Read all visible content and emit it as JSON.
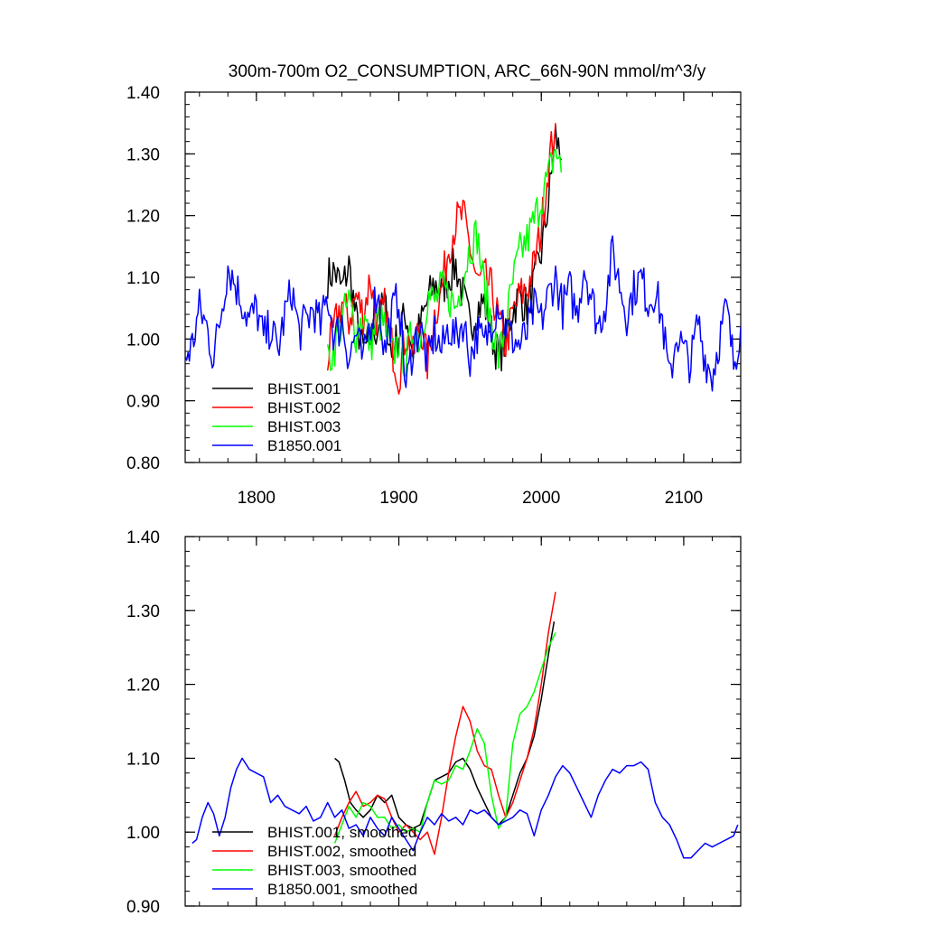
{
  "chart_data": [
    {
      "type": "line",
      "title": "300m-700m O2_CONSUMPTION, ARC_66N-90N  mmol/m^3/y",
      "xlim": [
        1750,
        2140
      ],
      "ylim": [
        0.8,
        1.4
      ],
      "xticks": [
        1800,
        1900,
        2000,
        2100
      ],
      "xtick_labels": [
        "1800",
        "1900",
        "2000",
        "2100"
      ],
      "yticks": [
        0.8,
        0.9,
        1.0,
        1.1,
        1.2,
        1.3,
        1.4
      ],
      "ytick_labels": [
        "0.80",
        "0.90",
        "1.00",
        "1.10",
        "1.20",
        "1.30",
        "1.40"
      ],
      "grid": false,
      "legend_position": "bottom-left",
      "series": [
        {
          "name": "BHIST.001",
          "color": "#000000",
          "x": [
            1850,
            1855,
            1860,
            1865,
            1870,
            1875,
            1880,
            1885,
            1890,
            1895,
            1900,
            1905,
            1910,
            1915,
            1920,
            1925,
            1930,
            1935,
            1940,
            1945,
            1950,
            1955,
            1960,
            1965,
            1970,
            1975,
            1980,
            1985,
            1990,
            1995,
            2000,
            2005,
            2010,
            2014
          ],
          "y": [
            1.1,
            1.11,
            1.08,
            1.12,
            1.03,
            0.98,
            1.0,
            1.02,
            1.06,
            0.97,
            1.01,
            1.04,
            0.98,
            1.02,
            1.06,
            1.09,
            1.08,
            1.1,
            1.12,
            1.07,
            1.02,
            1.05,
            1.06,
            1.01,
            0.97,
            1.0,
            1.05,
            1.07,
            1.05,
            1.09,
            1.14,
            1.22,
            1.33,
            1.29
          ]
        },
        {
          "name": "BHIST.002",
          "color": "#ff0000",
          "x": [
            1850,
            1855,
            1860,
            1865,
            1870,
            1875,
            1880,
            1885,
            1890,
            1895,
            1900,
            1905,
            1910,
            1915,
            1920,
            1925,
            1930,
            1935,
            1940,
            1945,
            1950,
            1955,
            1960,
            1965,
            1970,
            1975,
            1980,
            1985,
            1990,
            1995,
            2000,
            2005,
            2010
          ],
          "y": [
            0.97,
            1.02,
            1.06,
            1.03,
            1.07,
            1.04,
            1.1,
            1.02,
            1.05,
            0.99,
            0.94,
            1.01,
            0.97,
            1.03,
            0.96,
            1.04,
            1.08,
            1.15,
            1.19,
            1.2,
            1.15,
            1.09,
            1.1,
            1.08,
            1.03,
            0.99,
            1.04,
            1.07,
            1.08,
            1.12,
            1.18,
            1.28,
            1.35
          ]
        },
        {
          "name": "BHIST.003",
          "color": "#00ff00",
          "x": [
            1850,
            1855,
            1860,
            1865,
            1870,
            1875,
            1880,
            1885,
            1890,
            1895,
            1900,
            1905,
            1910,
            1915,
            1920,
            1925,
            1930,
            1935,
            1940,
            1945,
            1950,
            1955,
            1960,
            1965,
            1970,
            1975,
            1980,
            1985,
            1990,
            1995,
            2000,
            2005,
            2010,
            2014
          ],
          "y": [
            0.96,
            0.99,
            1.03,
            1.06,
            1.01,
            1.04,
            0.99,
            1.03,
            1.02,
            0.97,
            1.0,
            0.96,
            1.02,
            1.0,
            1.07,
            1.06,
            1.08,
            1.07,
            1.05,
            1.1,
            1.15,
            1.17,
            1.08,
            1.03,
            0.97,
            1.02,
            1.09,
            1.14,
            1.16,
            1.19,
            1.23,
            1.26,
            1.31,
            1.27
          ]
        },
        {
          "name": "B1850.001",
          "color": "#0000ff",
          "x": [
            1750,
            1755,
            1760,
            1765,
            1770,
            1775,
            1780,
            1785,
            1790,
            1795,
            1800,
            1805,
            1810,
            1815,
            1820,
            1825,
            1830,
            1835,
            1840,
            1845,
            1850,
            1855,
            1860,
            1865,
            1870,
            1875,
            1880,
            1885,
            1890,
            1895,
            1900,
            1905,
            1910,
            1915,
            1920,
            1925,
            1930,
            1935,
            1940,
            1945,
            1950,
            1955,
            1960,
            1965,
            1970,
            1975,
            1980,
            1985,
            1990,
            1995,
            2000,
            2005,
            2010,
            2015,
            2020,
            2025,
            2030,
            2035,
            2040,
            2045,
            2050,
            2055,
            2060,
            2065,
            2070,
            2075,
            2080,
            2085,
            2090,
            2095,
            2100,
            2105,
            2110,
            2115,
            2120,
            2125,
            2130,
            2135,
            2140
          ],
          "y": [
            0.97,
            0.99,
            1.05,
            1.02,
            0.97,
            1.04,
            1.12,
            1.09,
            1.06,
            1.03,
            1.05,
            1.0,
            1.02,
            0.98,
            1.04,
            1.08,
            1.01,
            1.03,
            1.05,
            1.02,
            1.07,
            1.0,
            1.03,
            0.97,
            1.01,
            0.96,
            1.03,
            1.08,
            0.98,
            1.04,
            1.07,
            0.92,
            0.99,
            1.02,
            0.96,
            1.01,
            0.98,
            1.02,
            1.0,
            1.03,
            0.97,
            1.01,
            0.99,
            1.03,
            1.06,
            1.02,
            1.0,
            0.99,
            1.01,
            1.05,
            1.03,
            1.07,
            1.1,
            1.05,
            1.08,
            1.04,
            1.12,
            1.07,
            1.02,
            1.06,
            1.14,
            1.09,
            1.04,
            1.08,
            1.1,
            1.06,
            1.08,
            1.03,
            0.93,
            1.01,
            0.98,
            0.96,
            1.03,
            0.97,
            0.94,
            1.0,
            1.05,
            0.96,
            1.02
          ]
        }
      ]
    },
    {
      "type": "line",
      "title": "",
      "xlim": [
        1750,
        2140
      ],
      "ylim": [
        0.9,
        1.4
      ],
      "xticks": [
        1800,
        1900,
        2000,
        2100
      ],
      "yticks": [
        0.9,
        1.0,
        1.1,
        1.2,
        1.3,
        1.4
      ],
      "ytick_labels": [
        "0.90",
        "1.00",
        "1.10",
        "1.20",
        "1.30",
        "1.40"
      ],
      "grid": false,
      "legend_position": "bottom-left",
      "series": [
        {
          "name": "BHIST.001, smoothed",
          "color": "#000000",
          "x": [
            1855,
            1858,
            1862,
            1866,
            1870,
            1875,
            1880,
            1885,
            1890,
            1895,
            1900,
            1905,
            1910,
            1915,
            1920,
            1925,
            1930,
            1935,
            1940,
            1945,
            1950,
            1955,
            1960,
            1965,
            1970,
            1975,
            1980,
            1985,
            1990,
            1995,
            2000,
            2005,
            2009
          ],
          "y": [
            1.1,
            1.095,
            1.07,
            1.04,
            1.03,
            1.02,
            1.03,
            1.05,
            1.04,
            1.05,
            1.02,
            1.01,
            1.005,
            1.01,
            1.04,
            1.07,
            1.075,
            1.08,
            1.095,
            1.1,
            1.085,
            1.06,
            1.04,
            1.02,
            1.01,
            1.02,
            1.05,
            1.08,
            1.1,
            1.13,
            1.18,
            1.24,
            1.285
          ]
        },
        {
          "name": "BHIST.002, smoothed",
          "color": "#ff0000",
          "x": [
            1855,
            1860,
            1865,
            1870,
            1875,
            1880,
            1885,
            1890,
            1895,
            1900,
            1905,
            1910,
            1915,
            1920,
            1925,
            1930,
            1935,
            1940,
            1945,
            1950,
            1955,
            1960,
            1965,
            1970,
            1975,
            1980,
            1985,
            1990,
            1995,
            2000,
            2005,
            2010
          ],
          "y": [
            0.995,
            1.02,
            1.04,
            1.055,
            1.035,
            1.04,
            1.05,
            1.045,
            1.02,
            1.0,
            1.01,
            1.0,
            0.99,
            1.0,
            0.97,
            1.02,
            1.08,
            1.13,
            1.17,
            1.15,
            1.11,
            1.09,
            1.085,
            1.05,
            1.02,
            1.04,
            1.07,
            1.1,
            1.14,
            1.2,
            1.27,
            1.325
          ]
        },
        {
          "name": "BHIST.003, smoothed",
          "color": "#00ff00",
          "x": [
            1855,
            1860,
            1865,
            1870,
            1875,
            1880,
            1885,
            1890,
            1895,
            1900,
            1905,
            1910,
            1915,
            1920,
            1925,
            1930,
            1935,
            1940,
            1945,
            1950,
            1955,
            1960,
            1965,
            1970,
            1975,
            1980,
            1985,
            1990,
            1995,
            2000,
            2005,
            2010
          ],
          "y": [
            0.985,
            1.01,
            1.035,
            1.02,
            1.04,
            1.035,
            1.02,
            1.02,
            1.005,
            1.01,
            1.0,
            1.005,
            1.0,
            1.04,
            1.07,
            1.065,
            1.07,
            1.09,
            1.085,
            1.11,
            1.14,
            1.12,
            1.05,
            1.005,
            1.02,
            1.12,
            1.16,
            1.17,
            1.19,
            1.22,
            1.25,
            1.27
          ]
        },
        {
          "name": "B1850.001, smoothed",
          "color": "#0000ff",
          "x": [
            1755,
            1758,
            1762,
            1766,
            1770,
            1774,
            1778,
            1782,
            1786,
            1790,
            1795,
            1800,
            1805,
            1810,
            1815,
            1820,
            1825,
            1830,
            1835,
            1840,
            1845,
            1850,
            1855,
            1860,
            1865,
            1870,
            1875,
            1880,
            1885,
            1890,
            1895,
            1900,
            1905,
            1910,
            1915,
            1920,
            1925,
            1930,
            1935,
            1940,
            1945,
            1950,
            1955,
            1960,
            1965,
            1970,
            1975,
            1980,
            1985,
            1990,
            1995,
            2000,
            2005,
            2010,
            2015,
            2020,
            2025,
            2030,
            2035,
            2040,
            2045,
            2050,
            2055,
            2060,
            2065,
            2070,
            2075,
            2080,
            2085,
            2090,
            2095,
            2100,
            2105,
            2110,
            2115,
            2120,
            2125,
            2130,
            2135,
            2138
          ],
          "y": [
            0.985,
            0.99,
            1.02,
            1.04,
            1.025,
            0.995,
            1.02,
            1.06,
            1.085,
            1.1,
            1.085,
            1.08,
            1.075,
            1.04,
            1.05,
            1.035,
            1.03,
            1.025,
            1.035,
            1.015,
            1.02,
            1.04,
            1.02,
            1.03,
            1.005,
            1.01,
            0.995,
            1.02,
            1.005,
            0.995,
            1.02,
            1.005,
            0.99,
            0.975,
            1.0,
            1.02,
            1.01,
            1.025,
            1.015,
            1.02,
            1.01,
            1.03,
            1.025,
            1.03,
            1.02,
            1.01,
            1.015,
            1.02,
            1.03,
            1.025,
            0.995,
            1.03,
            1.05,
            1.075,
            1.09,
            1.08,
            1.06,
            1.04,
            1.02,
            1.05,
            1.07,
            1.085,
            1.08,
            1.09,
            1.09,
            1.095,
            1.085,
            1.04,
            1.02,
            1.01,
            0.99,
            0.965,
            0.965,
            0.975,
            0.985,
            0.98,
            0.985,
            0.99,
            0.995,
            1.01
          ]
        }
      ]
    }
  ]
}
